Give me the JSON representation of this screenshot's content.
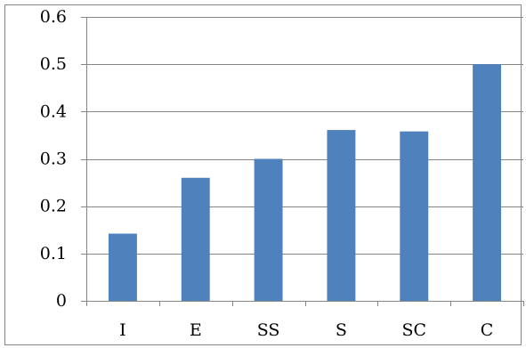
{
  "chart_data": {
    "type": "bar",
    "title": "",
    "xlabel": "",
    "ylabel": "",
    "categories": [
      "I",
      "E",
      "SS",
      "S",
      "SC",
      "C"
    ],
    "values": [
      0.142,
      0.26,
      0.3,
      0.361,
      0.358,
      0.5
    ],
    "ylim": [
      0,
      0.6
    ],
    "yticks": [
      0,
      0.1,
      0.2,
      0.3,
      0.4,
      0.5,
      0.6
    ],
    "ytick_labels": [
      "0",
      "0.1",
      "0.2",
      "0.3",
      "0.4",
      "0.5",
      "0.6"
    ],
    "grid": "horizontal",
    "legend": "none",
    "colors": {
      "bar": "#4f81bd",
      "grid": "#868686",
      "axis": "#868686",
      "frame": "#868686"
    }
  }
}
